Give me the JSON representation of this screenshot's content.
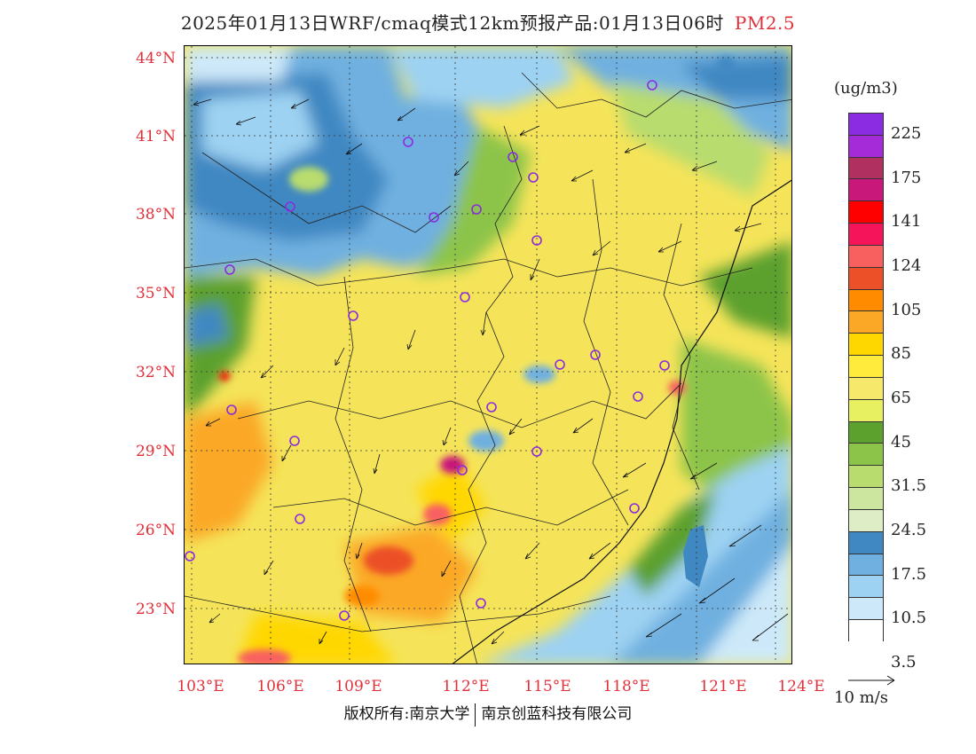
{
  "title": "2025年01月13日WRF/cmaq模式12km预报产品:01月13日06时",
  "pollutant": "PM2.5",
  "lat_labels": [
    "44°N",
    "41°N",
    "38°N",
    "35°N",
    "32°N",
    "29°N",
    "26°N",
    "23°N"
  ],
  "lon_labels": [
    "103°E",
    "106°E",
    "109°E",
    "112°E",
    "115°E",
    "118°E",
    "121°E",
    "124°E"
  ],
  "colorbar": {
    "unit": "(ug/m3)",
    "colors": [
      "#8b2be2",
      "#a52ad8",
      "#b03060",
      "#c8187a",
      "#ff0000",
      "#f5145a",
      "#f86060",
      "#ec5028",
      "#ff8c00",
      "#fba826",
      "#ffd700",
      "#ffeb3b",
      "#f5e86a",
      "#e6f060",
      "#5ca02e",
      "#8cc44a",
      "#b8dc6e",
      "#cce6a0",
      "#dfedc6",
      "#3f88c2",
      "#6fb0e0",
      "#9dd2f2",
      "#cde9f9",
      "#ffffff"
    ],
    "labels": [
      "225",
      "175",
      "141",
      "124",
      "105",
      "85",
      "65",
      "45",
      "31.5",
      "24.5",
      "17.5",
      "10.5",
      "3.5"
    ]
  },
  "wind_reference": "10 m/s",
  "footer": {
    "left": "版权所有:南京大学",
    "right": "南京创蓝科技有限公司"
  }
}
